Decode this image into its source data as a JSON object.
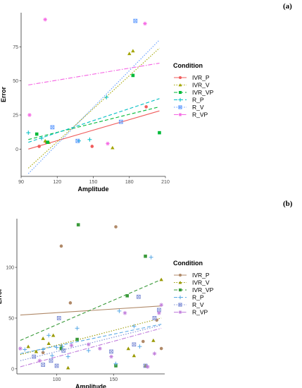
{
  "figure_labels": [
    "(a)",
    "(b)"
  ],
  "chart_data": [
    {
      "type": "scatter",
      "panel": "(a)",
      "xlabel": "Amplitude",
      "ylabel": "Error",
      "xlim": [
        90,
        210
      ],
      "ylim": [
        -20,
        100
      ],
      "xticks": [
        90,
        120,
        150,
        180,
        210
      ],
      "yticks": [
        0,
        25,
        50,
        75
      ],
      "grid": false,
      "legend": {
        "title": "Condition",
        "placement": "right"
      },
      "series": [
        {
          "name": "IVR_P",
          "color": "#f05c5c",
          "marker": "circle",
          "linestyle": "solid",
          "points": [
            [
              105,
              2
            ],
            [
              111,
              5
            ],
            [
              149,
              2
            ],
            [
              194,
              31
            ]
          ],
          "fit": [
            [
              96,
              0
            ],
            [
              205,
              28
            ]
          ]
        },
        {
          "name": "IVR_V",
          "color": "#a3a500",
          "marker": "triangle",
          "linestyle": "dotted",
          "points": [
            [
              110,
              6
            ],
            [
              113,
              5
            ],
            [
              166,
              1
            ],
            [
              180,
              70
            ],
            [
              183,
              72
            ]
          ],
          "fit": [
            [
              96,
              -14
            ],
            [
              205,
              74
            ]
          ]
        },
        {
          "name": "IVR_VP",
          "color": "#00ba38",
          "marker": "square",
          "linestyle": "dashed",
          "points": [
            [
              103,
              11
            ],
            [
              112,
              5
            ],
            [
              183,
              54
            ],
            [
              205,
              12
            ]
          ],
          "fit": [
            [
              96,
              7
            ],
            [
              205,
              31
            ]
          ]
        },
        {
          "name": "R_P",
          "color": "#00bfc4",
          "marker": "plus",
          "linestyle": "dashed",
          "points": [
            [
              96,
              12
            ],
            [
              107,
              8
            ],
            [
              138,
              6
            ],
            [
              147,
              7
            ],
            [
              161,
              38
            ]
          ],
          "fit": [
            [
              96,
              5
            ],
            [
              205,
              37
            ]
          ]
        },
        {
          "name": "R_V",
          "color": "#619cff",
          "marker": "boxx",
          "linestyle": "dotted",
          "points": [
            [
              116,
              16
            ],
            [
              137,
              6
            ],
            [
              173,
              20
            ],
            [
              185,
              94
            ]
          ],
          "fit": [
            [
              96,
              -18
            ],
            [
              205,
              80
            ]
          ]
        },
        {
          "name": "R_VP",
          "color": "#f564e3",
          "marker": "asterisk",
          "linestyle": "dashdot",
          "points": [
            [
              97,
              25
            ],
            [
              110,
              95
            ],
            [
              162,
              4
            ],
            [
              193,
              92
            ]
          ],
          "fit": [
            [
              96,
              47
            ],
            [
              205,
              63
            ]
          ]
        }
      ]
    },
    {
      "type": "scatter",
      "panel": "(b)",
      "xlabel": "Amplitude",
      "ylabel": "Error",
      "xlim": [
        65,
        195
      ],
      "ylim": [
        -5,
        148
      ],
      "xticks": [
        100,
        150
      ],
      "yticks": [
        0,
        50,
        100
      ],
      "grid": false,
      "legend": {
        "title": "Condition",
        "placement": "right"
      },
      "series": [
        {
          "name": "IVR_P",
          "color": "#b08968",
          "marker": "circle",
          "linestyle": "solid",
          "points": [
            [
              88,
              16
            ],
            [
              104,
              121
            ],
            [
              112,
              65
            ],
            [
              152,
              140
            ],
            [
              176,
              27
            ],
            [
              188,
              48
            ],
            [
              192,
              20
            ]
          ],
          "fit": [
            [
              68,
              53
            ],
            [
              192,
              62
            ]
          ]
        },
        {
          "name": "IVR_V",
          "color": "#999900",
          "marker": "triangle",
          "linestyle": "dotted",
          "points": [
            [
              75,
              22
            ],
            [
              82,
              17
            ],
            [
              88,
              30
            ],
            [
              93,
              25
            ],
            [
              97,
              33
            ],
            [
              104,
              22
            ],
            [
              110,
              1
            ],
            [
              163,
              20
            ],
            [
              168,
              13
            ],
            [
              178,
              3
            ],
            [
              185,
              28
            ],
            [
              192,
              88
            ]
          ],
          "fit": [
            [
              68,
              14
            ],
            [
              192,
              50
            ]
          ]
        },
        {
          "name": "IVR_VP",
          "color": "#3a9a3a",
          "marker": "square",
          "linestyle": "dashed",
          "points": [
            [
              104,
              20
            ],
            [
              118,
              29
            ],
            [
              119,
              142
            ],
            [
              152,
              3
            ],
            [
              162,
              72
            ],
            [
              178,
              111
            ]
          ],
          "fit": [
            [
              68,
              28
            ],
            [
              192,
              88
            ]
          ]
        },
        {
          "name": "R_P",
          "color": "#5aa9e6",
          "marker": "plus",
          "linestyle": "dashed",
          "points": [
            [
              72,
              19
            ],
            [
              88,
              19
            ],
            [
              93,
              33
            ],
            [
              96,
              13
            ],
            [
              100,
              21
            ],
            [
              105,
              22
            ],
            [
              110,
              12
            ],
            [
              118,
              40
            ],
            [
              128,
              18
            ],
            [
              152,
              5
            ],
            [
              155,
              57
            ],
            [
              168,
              42
            ],
            [
              173,
              22
            ],
            [
              183,
              110
            ]
          ],
          "fit": [
            [
              68,
              15
            ],
            [
              192,
              44
            ]
          ]
        },
        {
          "name": "R_V",
          "color": "#7f8fd6",
          "marker": "boxx",
          "linestyle": "dotted",
          "points": [
            [
              80,
              12
            ],
            [
              88,
              4
            ],
            [
              95,
              8
            ],
            [
              100,
              3
            ],
            [
              102,
              50
            ],
            [
              106,
              18
            ],
            [
              148,
              17
            ],
            [
              168,
              24
            ],
            [
              172,
              71
            ],
            [
              178,
              3
            ],
            [
              186,
              50
            ],
            [
              190,
              58
            ]
          ],
          "fit": [
            [
              68,
              8
            ],
            [
              192,
              43
            ]
          ]
        },
        {
          "name": "R_VP",
          "color": "#c17ddc",
          "marker": "asterisk",
          "linestyle": "dashdot",
          "points": [
            [
              68,
              20
            ],
            [
              85,
              8
            ],
            [
              113,
              23
            ],
            [
              128,
              24
            ],
            [
              138,
              20
            ],
            [
              148,
              12
            ],
            [
              160,
              55
            ],
            [
              180,
              2
            ],
            [
              186,
              15
            ],
            [
              190,
              55
            ],
            [
              192,
              63
            ]
          ],
          "fit": [
            [
              68,
              2
            ],
            [
              192,
              40
            ]
          ]
        }
      ]
    }
  ]
}
